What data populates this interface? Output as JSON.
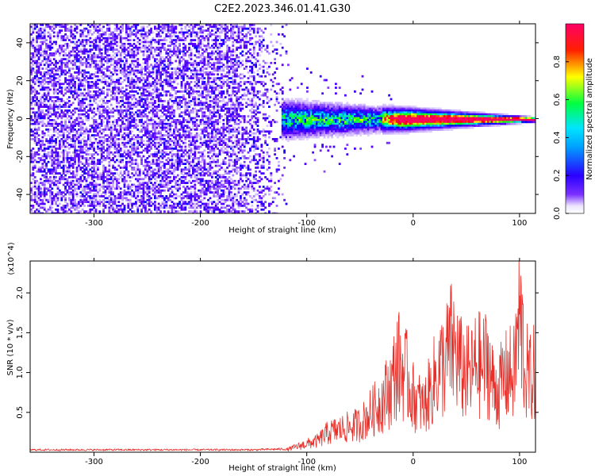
{
  "title": "C2E2.2023.346.01.41.G30",
  "chart_data": [
    {
      "type": "heatmap",
      "title": "C2E2.2023.346.01.41.G30",
      "xlabel": "Height of straight line (km)",
      "ylabel": "Frequency (Hz)",
      "xlim": [
        -360,
        115
      ],
      "ylim": [
        -50,
        50
      ],
      "xticks": [
        -300,
        -200,
        -100,
        0,
        100
      ],
      "yticks": [
        -40,
        -20,
        0,
        20,
        40
      ],
      "colorbar": {
        "label": "Normalized spectral amplitude",
        "range": [
          0.0,
          1.0
        ],
        "ticks": [
          "0.0",
          "0.2",
          "0.4",
          "0.6",
          "0.8"
        ],
        "colormap": [
          "#ffffff",
          "#5a00ff",
          "#0000ff",
          "#00e5ff",
          "#00ff00",
          "#ffff00",
          "#ff0000",
          "#ff0066"
        ]
      },
      "signal_band": {
        "center_hz": 0,
        "x_start_km": -115,
        "x_end_km": 115,
        "strong_from_km": -30,
        "spread_hz_at_start": 8,
        "spread_hz_at_end": 1
      },
      "noise_region": {
        "x_start_km": -360,
        "x_end_km": -115,
        "freq_range_hz": [
          -50,
          50
        ]
      },
      "grid": false
    },
    {
      "type": "line",
      "xlabel": "Height of straight line (km)",
      "ylabel": "SNR (10 * v/v)",
      "y_multiplier": "(x10^4)",
      "xlim": [
        -360,
        115
      ],
      "ylim": [
        0,
        24000
      ],
      "xticks": [
        -300,
        -200,
        -100,
        0,
        100
      ],
      "yticks": [
        "0.5",
        "1.0",
        "1.5",
        "2.0"
      ],
      "line_color": "#e8302a",
      "grid": false,
      "series": [
        {
          "x": [
            -360,
            -300,
            -250,
            -200,
            -150,
            -120,
            -100,
            -90,
            -80,
            -70,
            -60,
            -50,
            -40,
            -30,
            -20,
            -15,
            -10,
            -5,
            0,
            5,
            10,
            20,
            25,
            30,
            35,
            40,
            45,
            50,
            55,
            60,
            65,
            70,
            75,
            80,
            85,
            90,
            95,
            98,
            100,
            102,
            105,
            110,
            115
          ],
          "values": [
            300,
            300,
            300,
            300,
            300,
            400,
            1500,
            2000,
            3500,
            4000,
            4500,
            5000,
            7000,
            9000,
            12000,
            16000,
            15000,
            13000,
            10000,
            9000,
            8000,
            13000,
            15000,
            16000,
            19000,
            18000,
            15000,
            14000,
            14000,
            16000,
            15000,
            16500,
            12000,
            11000,
            13000,
            14000,
            14000,
            21000,
            24000,
            22000,
            15000,
            13000,
            14500
          ]
        }
      ]
    }
  ]
}
